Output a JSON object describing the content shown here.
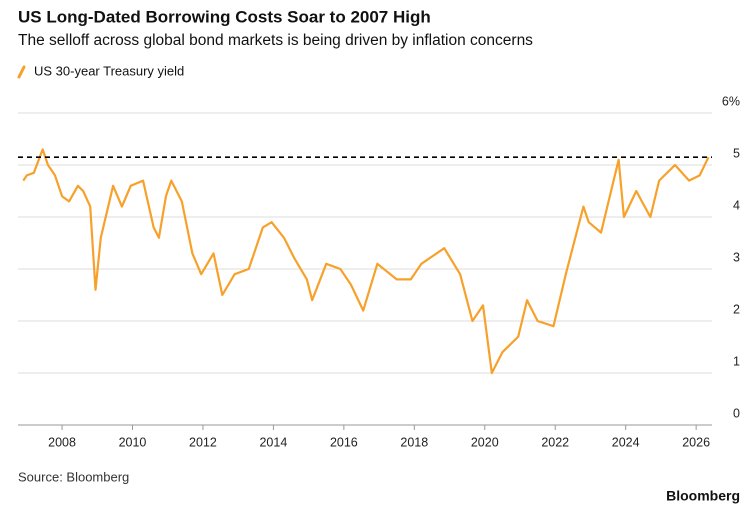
{
  "chart_data": {
    "type": "line",
    "title": "US Long-Dated Borrowing Costs Soar to 2007 High",
    "subtitle": "The selloff across global bond markets is being driven by inflation concerns",
    "source": "Source: Bloomberg",
    "brand": "Bloomberg",
    "x": [
      2006.9,
      2007.0,
      2007.2,
      2007.45,
      2007.6,
      2007.8,
      2008.0,
      2008.2,
      2008.45,
      2008.6,
      2008.8,
      2008.95,
      2009.1,
      2009.45,
      2009.7,
      2009.95,
      2010.3,
      2010.6,
      2010.75,
      2010.95,
      2011.1,
      2011.4,
      2011.7,
      2011.95,
      2012.3,
      2012.55,
      2012.9,
      2013.3,
      2013.7,
      2013.95,
      2014.3,
      2014.6,
      2014.95,
      2015.1,
      2015.5,
      2015.9,
      2016.2,
      2016.55,
      2016.95,
      2017.5,
      2017.9,
      2018.2,
      2018.85,
      2019.3,
      2019.65,
      2019.95,
      2020.2,
      2020.5,
      2020.95,
      2021.2,
      2021.5,
      2021.95,
      2022.3,
      2022.8,
      2022.95,
      2023.3,
      2023.8,
      2023.95,
      2024.3,
      2024.7,
      2024.95,
      2025.4,
      2025.8,
      2026.1,
      2026.35
    ],
    "series": [
      {
        "name": "US 30-year Treasury yield",
        "color": "#f7a12b",
        "values": [
          4.7,
          4.8,
          4.85,
          5.3,
          5.0,
          4.8,
          4.4,
          4.3,
          4.6,
          4.5,
          4.2,
          2.6,
          3.6,
          4.6,
          4.2,
          4.6,
          4.7,
          3.8,
          3.6,
          4.4,
          4.7,
          4.3,
          3.3,
          2.9,
          3.3,
          2.5,
          2.9,
          3.0,
          3.8,
          3.9,
          3.6,
          3.2,
          2.8,
          2.4,
          3.1,
          3.0,
          2.7,
          2.2,
          3.1,
          2.8,
          2.8,
          3.1,
          3.4,
          2.9,
          2.0,
          2.3,
          1.0,
          1.4,
          1.7,
          2.4,
          2.0,
          1.9,
          2.9,
          4.2,
          3.9,
          3.7,
          5.1,
          4.0,
          4.5,
          4.0,
          4.7,
          5.0,
          4.7,
          4.8,
          5.15
        ]
      }
    ],
    "reference_line": 5.15,
    "xlim": [
      2006.75,
      2026.45
    ],
    "xticks": [
      2008,
      2010,
      2012,
      2014,
      2016,
      2018,
      2020,
      2022,
      2024,
      2026
    ],
    "ylim": [
      0,
      6
    ],
    "yticks": [
      0,
      1,
      2,
      3,
      4,
      5,
      {
        "value": 6,
        "label": "6%"
      }
    ],
    "grid": true
  }
}
